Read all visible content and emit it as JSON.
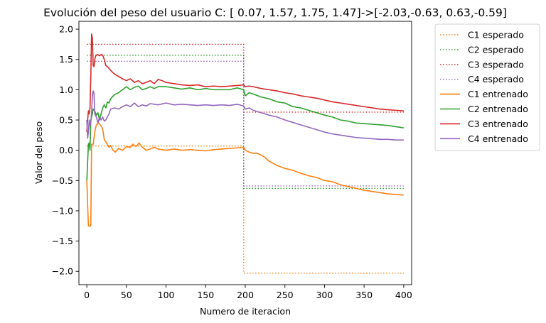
{
  "chart_data": {
    "type": "line",
    "title": "Evolución del peso del usuario C: [ 0.07, 1.57, 1.75, 1.47]->[-2.03,-0.63, 0.63,-0.59]",
    "xlabel": "Numero de iteracion",
    "ylabel": "Valor del peso",
    "xlim": [
      -10,
      410
    ],
    "ylim": [
      -2.22,
      2.13
    ],
    "xticks": [
      0,
      50,
      100,
      150,
      200,
      250,
      300,
      350,
      400
    ],
    "yticks": [
      -2.0,
      -1.5,
      -1.0,
      -0.5,
      0.0,
      0.5,
      1.0,
      1.5,
      2.0
    ],
    "legend_position": "outside-upper-right",
    "grid": false,
    "expected_series": [
      {
        "name": "C1 esperado",
        "color": "#ff7f0e",
        "style": "dotted",
        "before": 0.07,
        "after": -2.03,
        "switch_at": 198,
        "x_end": 400
      },
      {
        "name": "C2 esperado",
        "color": "#2ca02c",
        "style": "dotted",
        "before": 1.57,
        "after": -0.63,
        "switch_at": 198,
        "x_end": 400
      },
      {
        "name": "C3 esperado",
        "color": "#d62728",
        "style": "dotted",
        "before": 1.75,
        "after": 0.63,
        "switch_at": 198,
        "x_end": 400
      },
      {
        "name": "C4 esperado",
        "color": "#9467bd",
        "style": "dotted",
        "before": 1.47,
        "after": -0.59,
        "switch_at": 198,
        "x_end": 400
      }
    ],
    "trained_series": [
      {
        "name": "C1 entrenado",
        "color": "#ff7f0e",
        "style": "solid",
        "points": [
          [
            0,
            -0.5
          ],
          [
            1,
            -0.9
          ],
          [
            2,
            -1.25
          ],
          [
            3,
            -1.25
          ],
          [
            4,
            -1.25
          ],
          [
            5,
            -1.25
          ],
          [
            6,
            0.1
          ],
          [
            8,
            0.1
          ],
          [
            10,
            0.3
          ],
          [
            12,
            0.42
          ],
          [
            15,
            0.45
          ],
          [
            18,
            0.4
          ],
          [
            20,
            0.35
          ],
          [
            22,
            0.18
          ],
          [
            25,
            0.12
          ],
          [
            28,
            0.05
          ],
          [
            30,
            0.08
          ],
          [
            33,
            0.0
          ],
          [
            36,
            -0.03
          ],
          [
            40,
            0.03
          ],
          [
            45,
            0.0
          ],
          [
            50,
            0.06
          ],
          [
            55,
            0.05
          ],
          [
            58,
            0.1
          ],
          [
            62,
            0.06
          ],
          [
            66,
            0.12
          ],
          [
            70,
            0.05
          ],
          [
            75,
            0.0
          ],
          [
            80,
            0.02
          ],
          [
            85,
            0.05
          ],
          [
            90,
            0.02
          ],
          [
            100,
            0.0
          ],
          [
            110,
            0.02
          ],
          [
            120,
            0.0
          ],
          [
            130,
            0.01
          ],
          [
            140,
            0.0
          ],
          [
            150,
            -0.01
          ],
          [
            160,
            0.01
          ],
          [
            170,
            0.02
          ],
          [
            180,
            0.03
          ],
          [
            190,
            0.04
          ],
          [
            198,
            0.05
          ],
          [
            200,
            0.0
          ],
          [
            205,
            -0.03
          ],
          [
            210,
            -0.05
          ],
          [
            215,
            -0.05
          ],
          [
            220,
            -0.08
          ],
          [
            225,
            -0.12
          ],
          [
            230,
            -0.18
          ],
          [
            240,
            -0.25
          ],
          [
            250,
            -0.3
          ],
          [
            260,
            -0.33
          ],
          [
            270,
            -0.38
          ],
          [
            280,
            -0.42
          ],
          [
            290,
            -0.45
          ],
          [
            300,
            -0.5
          ],
          [
            310,
            -0.52
          ],
          [
            320,
            -0.57
          ],
          [
            330,
            -0.6
          ],
          [
            340,
            -0.63
          ],
          [
            350,
            -0.66
          ],
          [
            360,
            -0.68
          ],
          [
            370,
            -0.7
          ],
          [
            380,
            -0.72
          ],
          [
            390,
            -0.73
          ],
          [
            400,
            -0.74
          ]
        ]
      },
      {
        "name": "C2 entrenado",
        "color": "#2ca02c",
        "style": "solid",
        "points": [
          [
            0,
            -0.5
          ],
          [
            1,
            -0.2
          ],
          [
            2,
            0.1
          ],
          [
            3,
            0.12
          ],
          [
            4,
            0.0
          ],
          [
            5,
            0.5
          ],
          [
            6,
            0.55
          ],
          [
            7,
            0.6
          ],
          [
            8,
            0.68
          ],
          [
            10,
            0.65
          ],
          [
            12,
            0.58
          ],
          [
            14,
            0.62
          ],
          [
            16,
            0.5
          ],
          [
            18,
            0.6
          ],
          [
            20,
            0.7
          ],
          [
            22,
            0.75
          ],
          [
            24,
            0.7
          ],
          [
            26,
            0.8
          ],
          [
            28,
            0.78
          ],
          [
            30,
            0.85
          ],
          [
            35,
            0.92
          ],
          [
            40,
            0.95
          ],
          [
            45,
            1.0
          ],
          [
            50,
            1.05
          ],
          [
            55,
            1.0
          ],
          [
            60,
            1.04
          ],
          [
            65,
            1.06
          ],
          [
            70,
            1.0
          ],
          [
            75,
            1.02
          ],
          [
            80,
            1.05
          ],
          [
            85,
            1.02
          ],
          [
            90,
            1.05
          ],
          [
            100,
            1.05
          ],
          [
            110,
            1.03
          ],
          [
            120,
            1.01
          ],
          [
            130,
            1.03
          ],
          [
            140,
            1.0
          ],
          [
            150,
            1.02
          ],
          [
            160,
            1.0
          ],
          [
            170,
            1.0
          ],
          [
            180,
            1.0
          ],
          [
            190,
            1.03
          ],
          [
            198,
            1.0
          ],
          [
            200,
            0.9
          ],
          [
            205,
            0.95
          ],
          [
            210,
            0.93
          ],
          [
            220,
            0.88
          ],
          [
            230,
            0.85
          ],
          [
            240,
            0.8
          ],
          [
            250,
            0.78
          ],
          [
            260,
            0.72
          ],
          [
            270,
            0.7
          ],
          [
            280,
            0.66
          ],
          [
            290,
            0.62
          ],
          [
            300,
            0.58
          ],
          [
            310,
            0.55
          ],
          [
            320,
            0.5
          ],
          [
            330,
            0.48
          ],
          [
            340,
            0.45
          ],
          [
            350,
            0.44
          ],
          [
            360,
            0.43
          ],
          [
            370,
            0.42
          ],
          [
            380,
            0.41
          ],
          [
            390,
            0.39
          ],
          [
            400,
            0.37
          ]
        ]
      },
      {
        "name": "C3 entrenado",
        "color": "#d62728",
        "style": "solid",
        "points": [
          [
            0,
            0.3
          ],
          [
            1,
            0.5
          ],
          [
            2,
            0.65
          ],
          [
            3,
            0.6
          ],
          [
            4,
            0.7
          ],
          [
            5,
            1.2
          ],
          [
            6,
            1.92
          ],
          [
            7,
            1.85
          ],
          [
            8,
            1.4
          ],
          [
            9,
            1.38
          ],
          [
            10,
            1.5
          ],
          [
            11,
            1.55
          ],
          [
            12,
            1.57
          ],
          [
            14,
            1.58
          ],
          [
            16,
            1.56
          ],
          [
            18,
            1.58
          ],
          [
            20,
            1.57
          ],
          [
            22,
            1.5
          ],
          [
            24,
            1.4
          ],
          [
            26,
            1.38
          ],
          [
            28,
            1.35
          ],
          [
            30,
            1.32
          ],
          [
            33,
            1.28
          ],
          [
            36,
            1.25
          ],
          [
            40,
            1.22
          ],
          [
            45,
            1.18
          ],
          [
            50,
            1.15
          ],
          [
            55,
            1.18
          ],
          [
            60,
            1.12
          ],
          [
            65,
            1.15
          ],
          [
            70,
            1.1
          ],
          [
            75,
            1.12
          ],
          [
            80,
            1.15
          ],
          [
            85,
            1.1
          ],
          [
            90,
            1.17
          ],
          [
            95,
            1.15
          ],
          [
            100,
            1.12
          ],
          [
            110,
            1.1
          ],
          [
            120,
            1.08
          ],
          [
            130,
            1.07
          ],
          [
            140,
            1.08
          ],
          [
            150,
            1.05
          ],
          [
            160,
            1.06
          ],
          [
            170,
            1.05
          ],
          [
            180,
            1.06
          ],
          [
            190,
            1.07
          ],
          [
            198,
            1.08
          ],
          [
            200,
            1.05
          ],
          [
            205,
            1.06
          ],
          [
            210,
            1.05
          ],
          [
            220,
            1.02
          ],
          [
            230,
            1.0
          ],
          [
            240,
            0.98
          ],
          [
            250,
            0.95
          ],
          [
            260,
            0.93
          ],
          [
            270,
            0.9
          ],
          [
            280,
            0.88
          ],
          [
            290,
            0.86
          ],
          [
            300,
            0.83
          ],
          [
            310,
            0.8
          ],
          [
            320,
            0.78
          ],
          [
            330,
            0.76
          ],
          [
            340,
            0.74
          ],
          [
            350,
            0.72
          ],
          [
            360,
            0.7
          ],
          [
            370,
            0.68
          ],
          [
            380,
            0.67
          ],
          [
            390,
            0.66
          ],
          [
            400,
            0.65
          ]
        ]
      },
      {
        "name": "C4 entrenado",
        "color": "#9467bd",
        "style": "solid",
        "points": [
          [
            0,
            0.5
          ],
          [
            1,
            0.2
          ],
          [
            2,
            0.3
          ],
          [
            3,
            0.5
          ],
          [
            4,
            0.4
          ],
          [
            5,
            0.45
          ],
          [
            6,
            0.62
          ],
          [
            7,
            0.9
          ],
          [
            8,
            0.98
          ],
          [
            9,
            0.95
          ],
          [
            10,
            0.6
          ],
          [
            12,
            0.55
          ],
          [
            14,
            0.45
          ],
          [
            16,
            0.55
          ],
          [
            18,
            0.5
          ],
          [
            20,
            0.55
          ],
          [
            22,
            0.48
          ],
          [
            24,
            0.5
          ],
          [
            26,
            0.55
          ],
          [
            28,
            0.6
          ],
          [
            30,
            0.68
          ],
          [
            35,
            0.7
          ],
          [
            40,
            0.68
          ],
          [
            45,
            0.72
          ],
          [
            50,
            0.75
          ],
          [
            55,
            0.72
          ],
          [
            60,
            0.78
          ],
          [
            65,
            0.72
          ],
          [
            70,
            0.75
          ],
          [
            75,
            0.73
          ],
          [
            80,
            0.77
          ],
          [
            90,
            0.75
          ],
          [
            100,
            0.78
          ],
          [
            110,
            0.75
          ],
          [
            120,
            0.76
          ],
          [
            130,
            0.75
          ],
          [
            140,
            0.74
          ],
          [
            150,
            0.75
          ],
          [
            160,
            0.74
          ],
          [
            170,
            0.75
          ],
          [
            180,
            0.74
          ],
          [
            190,
            0.76
          ],
          [
            198,
            0.73
          ],
          [
            200,
            0.68
          ],
          [
            205,
            0.7
          ],
          [
            210,
            0.66
          ],
          [
            220,
            0.62
          ],
          [
            230,
            0.58
          ],
          [
            240,
            0.55
          ],
          [
            250,
            0.5
          ],
          [
            260,
            0.46
          ],
          [
            270,
            0.42
          ],
          [
            280,
            0.38
          ],
          [
            290,
            0.34
          ],
          [
            300,
            0.3
          ],
          [
            310,
            0.27
          ],
          [
            320,
            0.25
          ],
          [
            330,
            0.23
          ],
          [
            340,
            0.21
          ],
          [
            350,
            0.2
          ],
          [
            360,
            0.19
          ],
          [
            370,
            0.18
          ],
          [
            380,
            0.18
          ],
          [
            390,
            0.17
          ],
          [
            400,
            0.17
          ]
        ]
      }
    ]
  }
}
